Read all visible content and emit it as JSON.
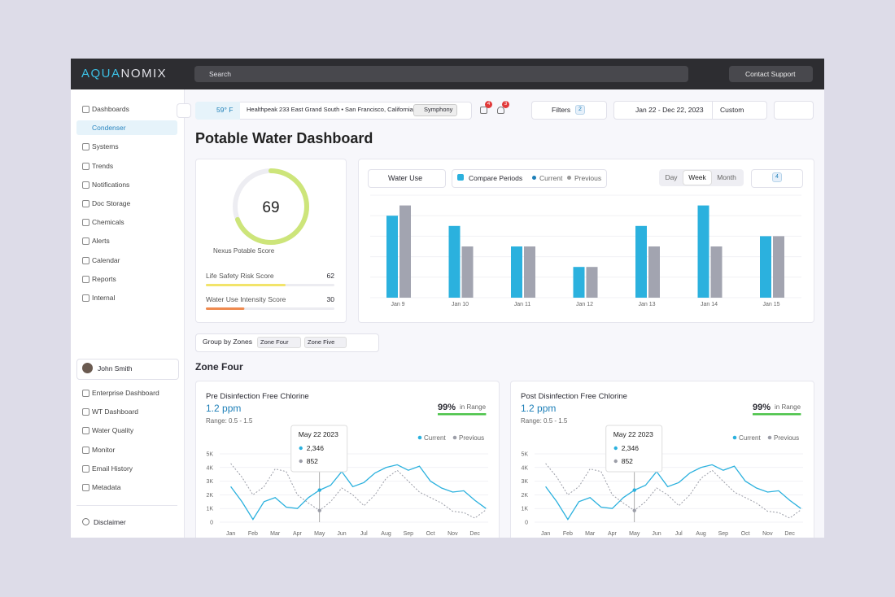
{
  "header": {
    "logo": "AQUANOMIX",
    "search": "Search",
    "support": "Contact Support"
  },
  "sidebar": {
    "items": [
      "Dashboards",
      "Condenser",
      "Systems",
      "Trends",
      "Notifications",
      "Doc Storage",
      "Chemicals",
      "Alerts",
      "Calendar",
      "Reports",
      "Internal"
    ],
    "user": "John Smith",
    "links": [
      "Enterprise Dashboard",
      "WT Dashboard",
      "Water Quality",
      "Monitor",
      "Email History",
      "Metadata"
    ],
    "disclaimer": "Disclaimer"
  },
  "toolbar": {
    "weather": "59° F",
    "location": "Healthpeak 233 East Grand South • San Francisco, California",
    "site": "Symphony",
    "badges": [
      4,
      3
    ],
    "filters": "Filters",
    "filter_count": 2,
    "date_range": "Jan 22 - Dec 22, 2023",
    "range_mode": "Custom"
  },
  "title": "Potable Water Dashboard",
  "score": {
    "value": 69,
    "label": "Nexus Potable Score",
    "metrics": [
      {
        "name": "Life Safety Risk Score",
        "value": 62,
        "color": "#f2e46a"
      },
      {
        "name": "Water Use Intensity Score",
        "value": 30,
        "color": "#ef8a4f"
      }
    ]
  },
  "usage_chart": {
    "type": "bar",
    "metric": "Water Use",
    "compare": "Compare Periods",
    "periods": [
      "Day",
      "Week",
      "Month"
    ],
    "active_period": "Week",
    "filter_count": 4,
    "categories": [
      "Jan 9",
      "Jan 10",
      "Jan 11",
      "Jan 12",
      "Jan 13",
      "Jan 14",
      "Jan 15"
    ],
    "series": [
      {
        "name": "Current",
        "color": "#2bb1de",
        "values": [
          80,
          70,
          50,
          30,
          70,
          90,
          60
        ]
      },
      {
        "name": "Previous",
        "color": "#a2a4b0",
        "values": [
          90,
          50,
          50,
          30,
          50,
          50,
          60
        ]
      }
    ],
    "ylim": [
      0,
      100
    ]
  },
  "zones": {
    "label": "Group by Zones",
    "chips": [
      "Zone Four",
      "Zone Five"
    ]
  },
  "zone_title": "Zone Four",
  "zone_charts": [
    {
      "type": "line",
      "title": "Pre Disinfection Free Chlorine",
      "reading": "1.2 ppm",
      "range": "Range: 0.5 - 1.5",
      "in_range": {
        "value": 99,
        "label": "99%"
      },
      "in_range_text": "in Range",
      "x": [
        0,
        0.5,
        1,
        1.5,
        2,
        2.5,
        3,
        3.5,
        4,
        4.5,
        5,
        5.5,
        6,
        6.5,
        7,
        7.5,
        8,
        8.5,
        9,
        9.5,
        10,
        10.5,
        11,
        11.5
      ],
      "series": [
        {
          "name": "Current",
          "color": "#2bb1de",
          "values": [
            2600,
            1500,
            200,
            1500,
            1800,
            1100,
            1000,
            1800,
            2346,
            2700,
            3700,
            2600,
            2900,
            3600,
            4000,
            4200,
            3800,
            4100,
            3000,
            2500,
            2200,
            2300,
            1600,
            1000
          ]
        },
        {
          "name": "Previous",
          "color": "#9c9ea8",
          "values": [
            4300,
            3300,
            2000,
            2600,
            3900,
            3700,
            2000,
            1400,
            852,
            1500,
            2500,
            2000,
            1200,
            2000,
            3200,
            3800,
            3000,
            2200,
            1800,
            1400,
            800,
            700,
            300,
            900
          ]
        }
      ],
      "xlim": [
        -0.5,
        11.6
      ],
      "xticks": [
        {
          "value": 0,
          "label": "Jan"
        },
        {
          "value": 1,
          "label": "Feb"
        },
        {
          "value": 2,
          "label": "Mar"
        },
        {
          "value": 3,
          "label": "Apr"
        },
        {
          "value": 4,
          "label": "May"
        },
        {
          "value": 5,
          "label": "Jun"
        },
        {
          "value": 6,
          "label": "Jul"
        },
        {
          "value": 7,
          "label": "Aug"
        },
        {
          "value": 8,
          "label": "Sep"
        },
        {
          "value": 9,
          "label": "Oct"
        },
        {
          "value": 10,
          "label": "Nov"
        },
        {
          "value": 11,
          "label": "Dec"
        }
      ],
      "ylim": [
        0,
        5000
      ],
      "yticks": [
        0,
        {
          "value": 1000,
          "label": "1K"
        },
        {
          "value": 2000,
          "label": "2K"
        },
        {
          "value": 3000,
          "label": "3K"
        },
        {
          "value": 4000,
          "label": "4K"
        },
        {
          "value": 5000,
          "label": "5K"
        }
      ],
      "tooltip": {
        "date": "May 22 2023",
        "x": 4,
        "values": [
          2346,
          852
        ],
        "value_labels": [
          "2,346",
          "852"
        ]
      }
    },
    {
      "type": "line",
      "title": "Post Disinfection Free Chlorine",
      "reading": "1.2 ppm",
      "range": "Range: 0.5 - 1.5",
      "in_range": {
        "value": 99,
        "label": "99%"
      },
      "in_range_text": "in Range",
      "x": [
        0,
        0.5,
        1,
        1.5,
        2,
        2.5,
        3,
        3.5,
        4,
        4.5,
        5,
        5.5,
        6,
        6.5,
        7,
        7.5,
        8,
        8.5,
        9,
        9.5,
        10,
        10.5,
        11,
        11.5
      ],
      "series": [
        {
          "name": "Current",
          "color": "#2bb1de",
          "values": [
            2600,
            1500,
            200,
            1500,
            1800,
            1100,
            1000,
            1800,
            2346,
            2700,
            3700,
            2600,
            2900,
            3600,
            4000,
            4200,
            3800,
            4100,
            3000,
            2500,
            2200,
            2300,
            1600,
            1000
          ]
        },
        {
          "name": "Previous",
          "color": "#9c9ea8",
          "values": [
            4300,
            3300,
            2000,
            2600,
            3900,
            3700,
            2000,
            1400,
            852,
            1500,
            2500,
            2000,
            1200,
            2000,
            3200,
            3800,
            3000,
            2200,
            1800,
            1400,
            800,
            700,
            300,
            900
          ]
        }
      ],
      "xlim": [
        -0.5,
        11.6
      ],
      "xticks": [
        {
          "value": 0,
          "label": "Jan"
        },
        {
          "value": 1,
          "label": "Feb"
        },
        {
          "value": 2,
          "label": "Mar"
        },
        {
          "value": 3,
          "label": "Apr"
        },
        {
          "value": 4,
          "label": "May"
        },
        {
          "value": 5,
          "label": "Jun"
        },
        {
          "value": 6,
          "label": "Jul"
        },
        {
          "value": 7,
          "label": "Aug"
        },
        {
          "value": 8,
          "label": "Sep"
        },
        {
          "value": 9,
          "label": "Oct"
        },
        {
          "value": 10,
          "label": "Nov"
        },
        {
          "value": 11,
          "label": "Dec"
        }
      ],
      "ylim": [
        0,
        5000
      ],
      "yticks": [
        0,
        {
          "value": 1000,
          "label": "1K"
        },
        {
          "value": 2000,
          "label": "2K"
        },
        {
          "value": 3000,
          "label": "3K"
        },
        {
          "value": 4000,
          "label": "4K"
        },
        {
          "value": 5000,
          "label": "5K"
        }
      ],
      "tooltip": {
        "date": "May 22 2023",
        "x": 4,
        "values": [
          2346,
          852
        ],
        "value_labels": [
          "2,346",
          "852"
        ]
      }
    }
  ]
}
